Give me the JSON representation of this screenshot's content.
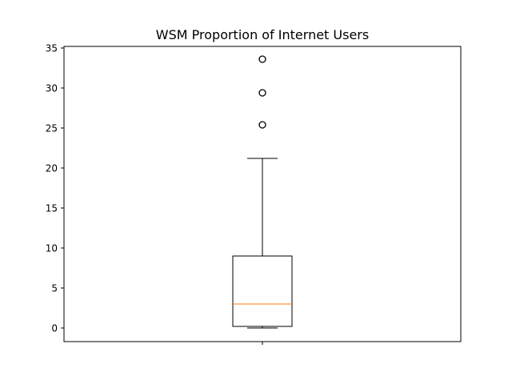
{
  "chart_data": {
    "type": "box",
    "title": "WSM Proportion of Internet Users",
    "xlabel": "",
    "ylabel": "",
    "ylim": [
      -1.7,
      35.2
    ],
    "yticks": [
      0,
      5,
      10,
      15,
      20,
      25,
      30,
      35
    ],
    "xticks": [
      ""
    ],
    "grid": false,
    "series": [
      {
        "whisker_low": 0.0,
        "q1": 0.2,
        "median": 3.0,
        "q3": 9.0,
        "whisker_high": 21.2,
        "outliers": [
          25.4,
          29.4,
          33.6
        ]
      }
    ],
    "colors": {
      "box": "#000000",
      "median": "#ff7f0e",
      "outlier_edge": "#000000"
    }
  }
}
